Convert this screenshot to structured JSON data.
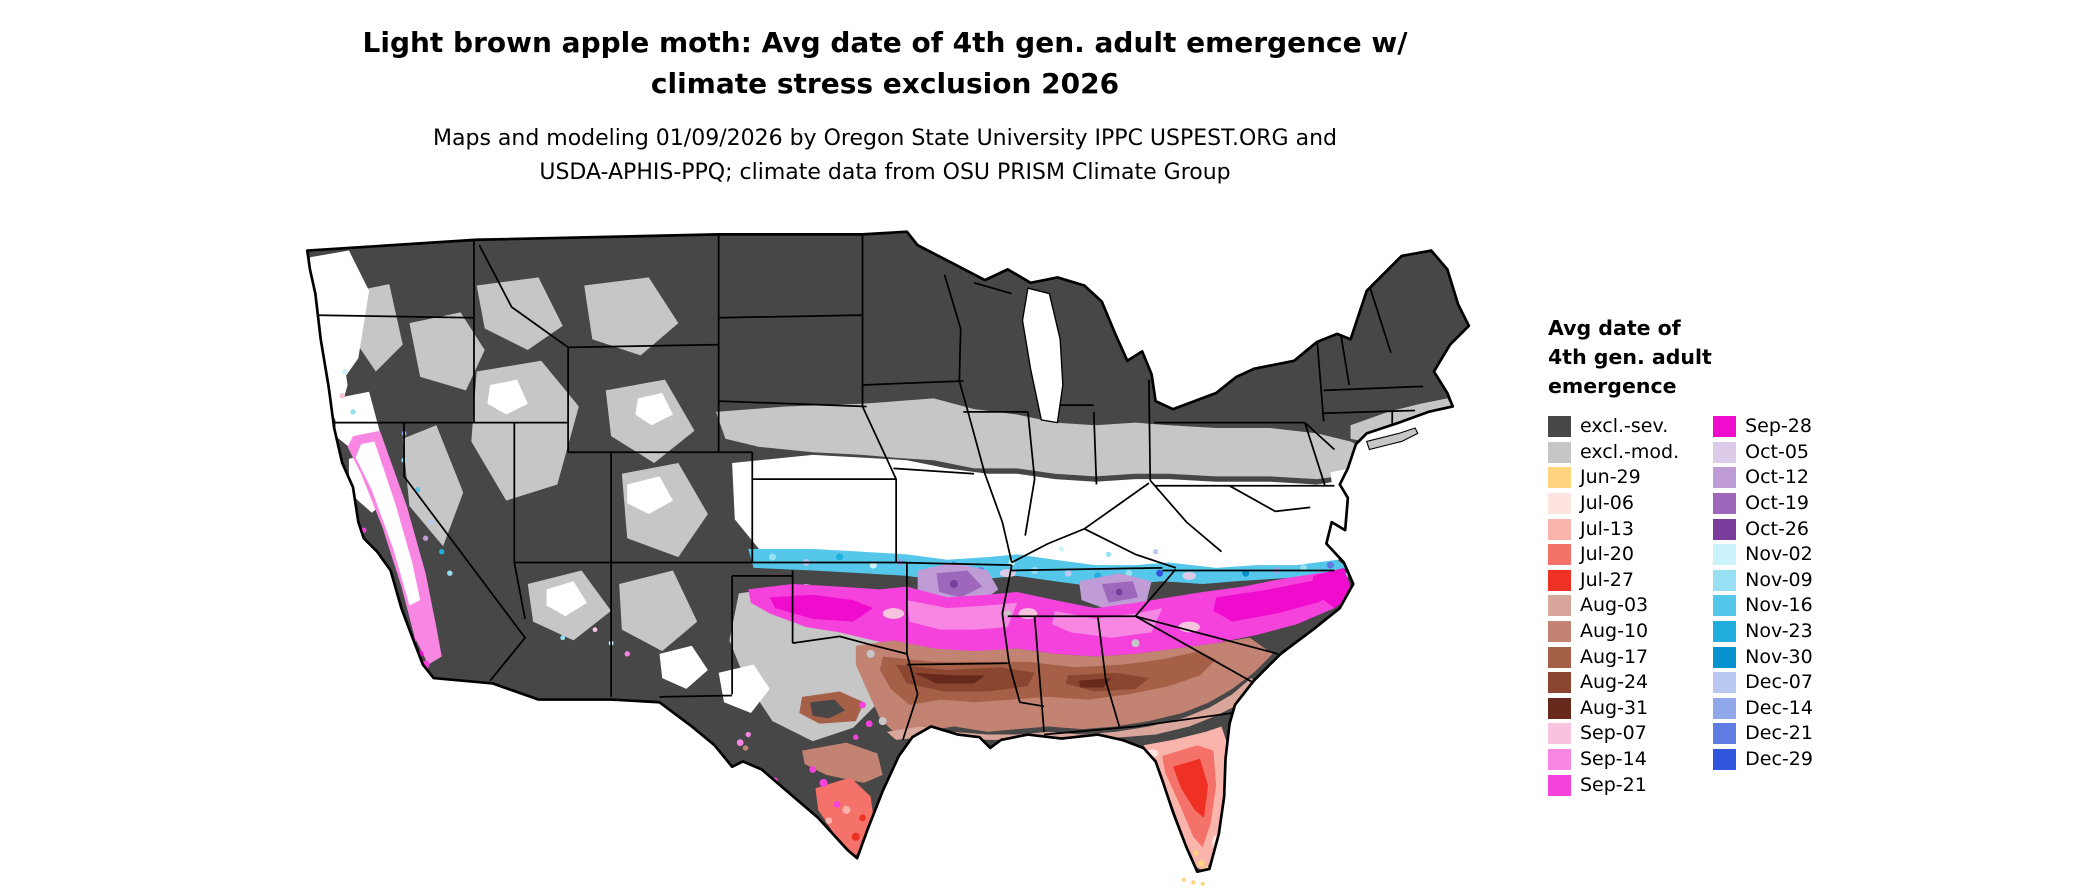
{
  "title": "Light brown apple moth: Avg date of 4th gen. adult emergence w/\nclimate stress exclusion 2026",
  "subtitle": "Maps and modeling 01/09/2026 by Oregon State University IPPC USPEST.ORG and\nUSDA-APHIS-PPQ; climate data from OSU PRISM Climate Group",
  "legend": {
    "title": "Avg date of\n4th gen. adult\nemergence",
    "columns": [
      [
        {
          "label": "excl.-sev.",
          "key": "excl_sev"
        },
        {
          "label": "excl.-mod.",
          "key": "excl_mod"
        },
        {
          "label": "Jun-29",
          "key": "jun29"
        },
        {
          "label": "Jul-06",
          "key": "jul06"
        },
        {
          "label": "Jul-13",
          "key": "jul13"
        },
        {
          "label": "Jul-20",
          "key": "jul20"
        },
        {
          "label": "Jul-27",
          "key": "jul27"
        },
        {
          "label": "Aug-03",
          "key": "aug03"
        },
        {
          "label": "Aug-10",
          "key": "aug10"
        },
        {
          "label": "Aug-17",
          "key": "aug17"
        },
        {
          "label": "Aug-24",
          "key": "aug24"
        },
        {
          "label": "Aug-31",
          "key": "aug31"
        },
        {
          "label": "Sep-07",
          "key": "sep07"
        },
        {
          "label": "Sep-14",
          "key": "sep14"
        },
        {
          "label": "Sep-21",
          "key": "sep21"
        }
      ],
      [
        {
          "label": "Sep-28",
          "key": "sep28"
        },
        {
          "label": "Oct-05",
          "key": "oct05"
        },
        {
          "label": "Oct-12",
          "key": "oct12"
        },
        {
          "label": "Oct-19",
          "key": "oct19"
        },
        {
          "label": "Oct-26",
          "key": "oct26"
        },
        {
          "label": "Nov-02",
          "key": "nov02"
        },
        {
          "label": "Nov-09",
          "key": "nov09"
        },
        {
          "label": "Nov-16",
          "key": "nov16"
        },
        {
          "label": "Nov-23",
          "key": "nov23"
        },
        {
          "label": "Nov-30",
          "key": "nov30"
        },
        {
          "label": "Dec-07",
          "key": "dec07"
        },
        {
          "label": "Dec-14",
          "key": "dec14"
        },
        {
          "label": "Dec-21",
          "key": "dec21"
        },
        {
          "label": "Dec-29",
          "key": "dec29"
        }
      ]
    ]
  },
  "palette": {
    "excl_sev": "#474747",
    "excl_mod": "#c6c6c6",
    "jun29": "#ffd37f",
    "jul06": "#fde4df",
    "jul13": "#f9b4ab",
    "jul20": "#f4726a",
    "jul27": "#ee3124",
    "aug03": "#d9a69b",
    "aug10": "#c28373",
    "aug17": "#a66048",
    "aug24": "#8a4630",
    "aug31": "#67291c",
    "sep07": "#f8c3de",
    "sep14": "#f787e3",
    "sep21": "#f542dd",
    "sep28": "#ef0ccd",
    "oct05": "#dccbe8",
    "oct12": "#bf9cd6",
    "oct19": "#9d68bc",
    "oct26": "#7b3d9d",
    "nov02": "#ccf2fb",
    "nov09": "#97e0f4",
    "nov16": "#55c7ea",
    "nov23": "#21addd",
    "nov30": "#0691cf",
    "dec07": "#bac9f2",
    "dec14": "#90a7ea",
    "dec21": "#5f7ce2",
    "dec29": "#2f55dc",
    "none_white": "#ffffff",
    "border": "#000000"
  }
}
